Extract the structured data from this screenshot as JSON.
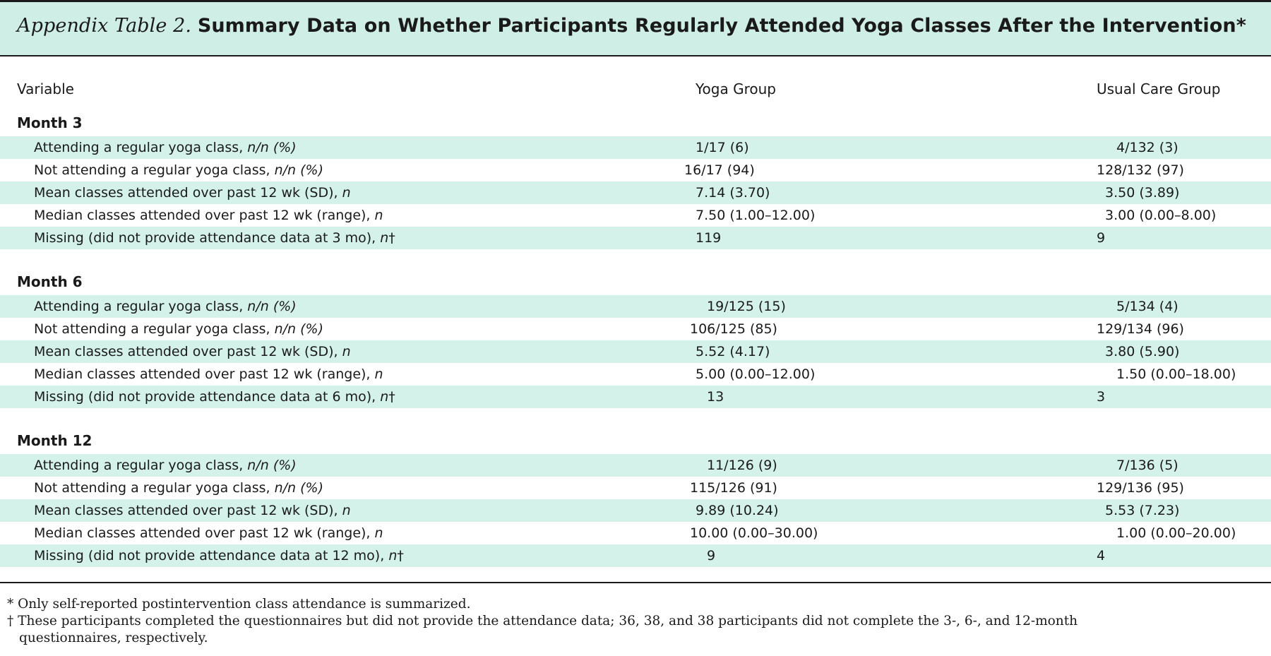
{
  "title": {
    "label": "Appendix Table 2.",
    "text": "Summary Data on Whether Participants Regularly Attended Yoga Classes After the Intervention*"
  },
  "columns": {
    "variable": "Variable",
    "yoga": "Yoga Group",
    "usual": "Usual Care Group"
  },
  "sections": [
    {
      "title": "Month 3",
      "rows": [
        {
          "label": "Attending a regular yoga class,",
          "suffix": "n/n (%)",
          "yoga": "1/17 (6)",
          "usual": "4/132 (3)"
        },
        {
          "label": "Not attending a regular yoga class,",
          "suffix": "n/n (%)",
          "yoga": "16/17 (94)",
          "usual": "128/132 (97)"
        },
        {
          "label": "Mean classes attended over past 12 wk (SD),",
          "suffix": "n",
          "yoga": "7.14 (3.70)",
          "usual": "3.50 (3.89)"
        },
        {
          "label": "Median classes attended over past 12 wk (range),",
          "suffix": "n",
          "yoga": "7.50 (1.00–12.00)",
          "usual": "3.00 (0.00–8.00)"
        },
        {
          "label": "Missing (did not provide attendance data at 3 mo),",
          "suffix": "n",
          "dagger": "†",
          "yoga": "119",
          "usual": "9"
        }
      ]
    },
    {
      "title": "Month 6",
      "rows": [
        {
          "label": "Attending a regular yoga class,",
          "suffix": "n/n (%)",
          "yoga": "19/125 (15)",
          "usual": "5/134 (4)"
        },
        {
          "label": "Not attending a regular yoga class,",
          "suffix": "n/n (%)",
          "yoga": "106/125 (85)",
          "usual": "129/134 (96)"
        },
        {
          "label": "Mean classes attended over past 12 wk (SD),",
          "suffix": "n",
          "yoga": "5.52 (4.17)",
          "usual": "3.80 (5.90)"
        },
        {
          "label": "Median classes attended over past 12 wk (range),",
          "suffix": "n",
          "yoga": "5.00 (0.00–12.00)",
          "usual": "1.50 (0.00–18.00)"
        },
        {
          "label": "Missing (did not provide attendance data at 6 mo),",
          "suffix": "n",
          "dagger": "†",
          "yoga": "13",
          "usual": "3"
        }
      ]
    },
    {
      "title": "Month 12",
      "rows": [
        {
          "label": "Attending a regular yoga class,",
          "suffix": "n/n (%)",
          "yoga": "11/126 (9)",
          "usual": "7/136 (5)"
        },
        {
          "label": "Not attending a regular yoga class,",
          "suffix": "n/n (%)",
          "yoga": "115/126 (91)",
          "usual": "129/136 (95)"
        },
        {
          "label": "Mean classes attended over past 12 wk (SD),",
          "suffix": "n",
          "yoga": "9.89 (10.24)",
          "usual": "5.53 (7.23)"
        },
        {
          "label": "Median classes attended over past 12 wk (range),",
          "suffix": "n",
          "yoga": "10.00 (0.00–30.00)",
          "usual": "1.00 (0.00–20.00)"
        },
        {
          "label": "Missing (did not provide attendance data at 12 mo),",
          "suffix": "n",
          "dagger": "†",
          "yoga": "9",
          "usual": "4"
        }
      ]
    }
  ],
  "footnotes": {
    "star": "* Only self-reported postintervention class attendance is summarized.",
    "dagger_line1": "† These participants completed the questionnaires but did not provide the attendance data; 36, 38, and 38 participants did not complete the 3-, 6-, and 12-month",
    "dagger_line2": "questionnaires, respectively."
  },
  "colors": {
    "shade": "#d4f2ea",
    "title_bar": "#cfeee5",
    "rule": "#1a1a1a"
  }
}
